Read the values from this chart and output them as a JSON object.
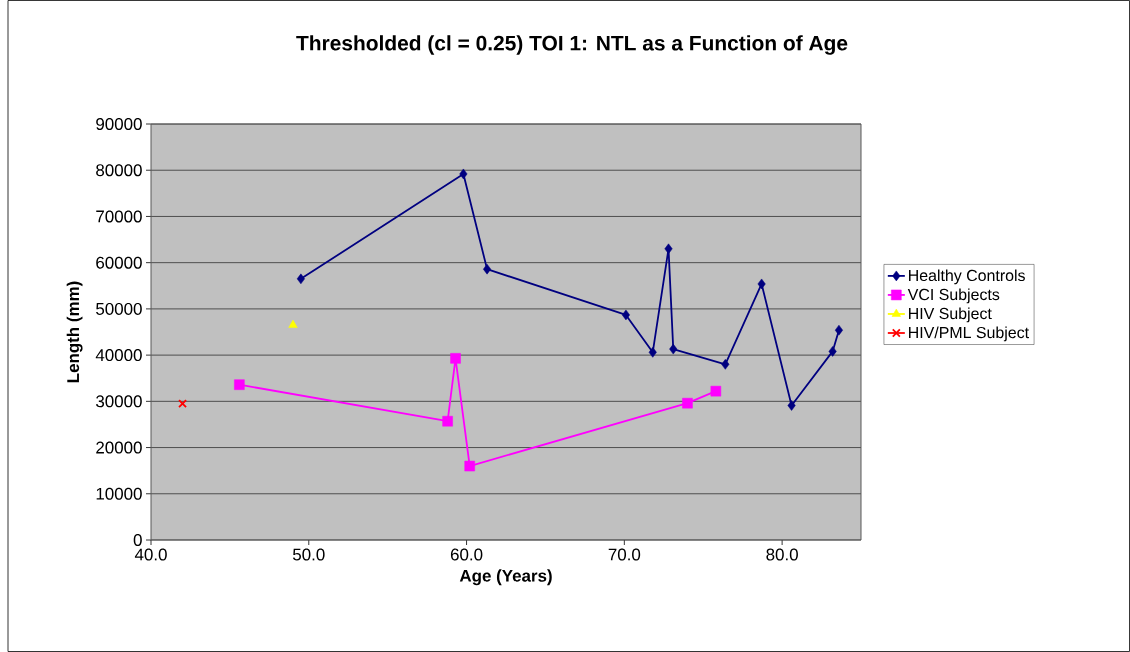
{
  "chart_data": {
    "type": "line",
    "title": "Thresholded (cl = 0.25) TOI 1: NTL as a Function of Age",
    "xlabel": "Age (Years)",
    "ylabel": "Length (mm)",
    "xlim": [
      40,
      85
    ],
    "xticks": [
      {
        "value": 40,
        "label": "40.0"
      },
      {
        "value": 50,
        "label": "50.0"
      },
      {
        "value": 60,
        "label": "60.0"
      },
      {
        "value": 70,
        "label": "70.0"
      },
      {
        "value": 80,
        "label": "80.0"
      }
    ],
    "ylim": [
      0,
      90000
    ],
    "yticks": [
      0,
      10000,
      20000,
      30000,
      40000,
      50000,
      60000,
      70000,
      80000,
      90000
    ],
    "grid": "y",
    "legend": "right",
    "line_style": "solid",
    "series": [
      {
        "name": "Healthy Controls",
        "color": "#000080",
        "marker": "diamond",
        "x": [
          49.5,
          59.8,
          61.3,
          70.1,
          71.8,
          72.8,
          73.1,
          76.4,
          78.7,
          80.6,
          83.2,
          83.6
        ],
        "values": [
          56500,
          79200,
          58600,
          48700,
          40600,
          63000,
          41300,
          38000,
          55400,
          29100,
          40800,
          45400
        ]
      },
      {
        "name": "VCI Subjects",
        "color": "#ff00ff",
        "marker": "square",
        "x": [
          45.6,
          58.8,
          59.3,
          60.2,
          74.0,
          75.8
        ],
        "values": [
          33600,
          25700,
          39300,
          16000,
          29600,
          32200
        ]
      },
      {
        "name": "HIV Subject",
        "color": "#ffff00",
        "marker": "triangle",
        "x": [
          49.0
        ],
        "values": [
          46500
        ]
      },
      {
        "name": "HIV/PML Subject",
        "color": "#ff0000",
        "marker": "cross",
        "x": [
          42.0
        ],
        "values": [
          29500
        ]
      }
    ]
  }
}
